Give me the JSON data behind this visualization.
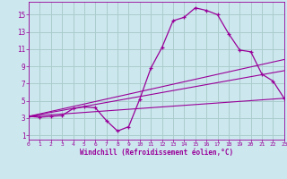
{
  "xlabel": "Windchill (Refroidissement éolien,°C)",
  "background_color": "#cce8ee",
  "grid_color": "#aacccc",
  "line_color": "#990099",
  "x_ticks": [
    0,
    1,
    2,
    3,
    4,
    5,
    6,
    7,
    8,
    9,
    10,
    11,
    12,
    13,
    14,
    15,
    16,
    17,
    18,
    19,
    20,
    21,
    22,
    23
  ],
  "y_ticks": [
    1,
    3,
    5,
    7,
    9,
    11,
    13,
    15
  ],
  "xlim": [
    0,
    23
  ],
  "ylim": [
    0.5,
    16.5
  ],
  "line1_x": [
    0,
    1,
    2,
    3,
    4,
    5,
    6,
    7,
    8,
    9,
    10,
    11,
    12,
    13,
    14,
    15,
    16,
    17,
    18,
    19,
    20,
    21,
    22,
    23
  ],
  "line1_y": [
    3.2,
    3.1,
    3.2,
    3.3,
    4.1,
    4.3,
    4.2,
    2.7,
    1.5,
    2.0,
    5.2,
    8.8,
    11.2,
    14.3,
    14.7,
    15.8,
    15.5,
    15.0,
    12.8,
    10.9,
    10.7,
    8.1,
    7.3,
    5.3
  ],
  "line2_x": [
    0,
    23
  ],
  "line2_y": [
    3.2,
    9.8
  ],
  "line3_x": [
    0,
    23
  ],
  "line3_y": [
    3.2,
    8.5
  ],
  "line4_x": [
    0,
    23
  ],
  "line4_y": [
    3.2,
    5.3
  ]
}
